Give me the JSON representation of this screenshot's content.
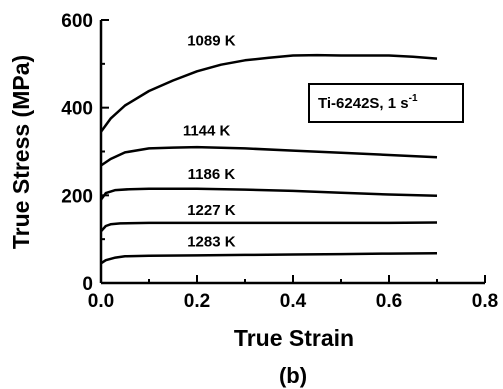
{
  "chart_data": {
    "type": "line",
    "xlabel": "True Strain",
    "ylabel": "True Stress (MPa)",
    "xlim": [
      0.0,
      0.8
    ],
    "ylim": [
      0,
      600
    ],
    "x_ticks": [
      "0.0",
      "0.2",
      "0.4",
      "0.6",
      "0.8"
    ],
    "y_ticks": [
      "0",
      "200",
      "400",
      "600"
    ],
    "grid": false,
    "annotation": {
      "text": "Ti-6242S, 1 s",
      "sup": "-1"
    },
    "caption": "(b)",
    "series": [
      {
        "name": "1089 K",
        "x": [
          0.0,
          0.02,
          0.05,
          0.1,
          0.15,
          0.2,
          0.25,
          0.3,
          0.35,
          0.4,
          0.45,
          0.5,
          0.55,
          0.6,
          0.65,
          0.7
        ],
        "y": [
          345,
          375,
          405,
          438,
          462,
          483,
          498,
          508,
          514,
          519,
          520,
          519,
          519,
          519,
          516,
          512
        ]
      },
      {
        "name": "1144 K",
        "x": [
          0.0,
          0.02,
          0.05,
          0.1,
          0.15,
          0.2,
          0.3,
          0.4,
          0.5,
          0.6,
          0.7
        ],
        "y": [
          268,
          283,
          298,
          307,
          309,
          310,
          307,
          302,
          297,
          292,
          287
        ]
      },
      {
        "name": "1186 K",
        "x": [
          0.0,
          0.01,
          0.03,
          0.06,
          0.1,
          0.2,
          0.3,
          0.4,
          0.5,
          0.6,
          0.7
        ],
        "y": [
          190,
          205,
          212,
          214,
          215,
          215,
          213,
          210,
          206,
          202,
          199
        ]
      },
      {
        "name": "1227 K",
        "x": [
          0.0,
          0.01,
          0.02,
          0.04,
          0.1,
          0.2,
          0.3,
          0.4,
          0.5,
          0.6,
          0.7
        ],
        "y": [
          118,
          130,
          134,
          136,
          137,
          137,
          137,
          137,
          137,
          137,
          138
        ]
      },
      {
        "name": "1283 K",
        "x": [
          0.0,
          0.01,
          0.03,
          0.05,
          0.1,
          0.2,
          0.3,
          0.4,
          0.5,
          0.6,
          0.7
        ],
        "y": [
          45,
          52,
          58,
          61,
          62,
          63,
          64,
          65,
          66,
          67,
          68
        ]
      }
    ]
  }
}
